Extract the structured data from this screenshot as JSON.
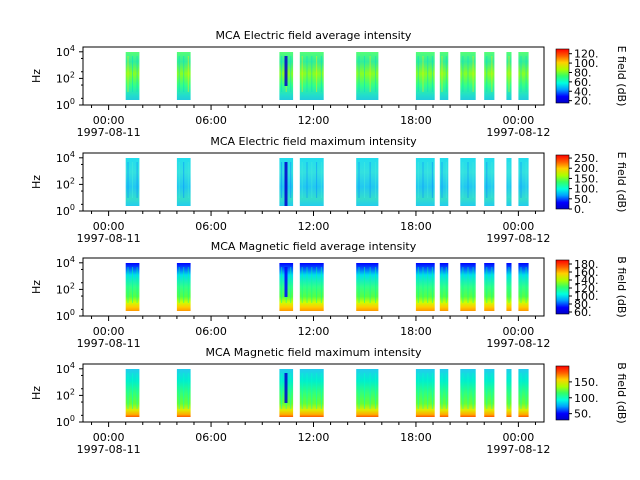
{
  "chart_data": [
    {
      "type": "heatmap",
      "title": "MCA  Electric field average intensity",
      "ylabel": "Hz",
      "y_scale": "log",
      "y_ticks": [
        {
          "base": "10",
          "exp": "0"
        },
        {
          "base": "10",
          "exp": "2"
        },
        {
          "base": "10",
          "exp": "4"
        }
      ],
      "x_ticks": [
        {
          "time": "00:00",
          "date": "1997-08-11"
        },
        {
          "time": "06:00",
          "date": ""
        },
        {
          "time": "12:00",
          "date": ""
        },
        {
          "time": "18:00",
          "date": ""
        },
        {
          "time": "00:00",
          "date": "1997-08-12"
        }
      ],
      "xlim": [
        "1997-08-10T22:30",
        "1997-08-12T00:30"
      ],
      "colorbar": {
        "label": "E field (dB)",
        "ticks": [
          "120.",
          "100.",
          "80.",
          "60.",
          "40.",
          "20."
        ],
        "tick_values": [
          120,
          100,
          80,
          60,
          40,
          20
        ],
        "range": [
          15,
          130
        ]
      },
      "style": "avg_e",
      "data_segments_hours": [
        [
          1.0,
          1.8
        ],
        [
          4.0,
          4.8
        ],
        [
          10.0,
          10.8
        ],
        [
          11.2,
          12.6
        ],
        [
          14.5,
          15.8
        ],
        [
          18.0,
          19.1
        ],
        [
          19.4,
          19.9
        ],
        [
          20.6,
          21.5
        ],
        [
          22.0,
          22.6
        ],
        [
          23.3,
          23.6
        ],
        [
          24.0,
          24.6
        ]
      ]
    },
    {
      "type": "heatmap",
      "title": "MCA  Electric field maximum intensity",
      "ylabel": "Hz",
      "y_scale": "log",
      "y_ticks": [
        {
          "base": "10",
          "exp": "0"
        },
        {
          "base": "10",
          "exp": "2"
        },
        {
          "base": "10",
          "exp": "4"
        }
      ],
      "x_ticks": [
        {
          "time": "00:00",
          "date": "1997-08-11"
        },
        {
          "time": "06:00",
          "date": ""
        },
        {
          "time": "12:00",
          "date": ""
        },
        {
          "time": "18:00",
          "date": ""
        },
        {
          "time": "00:00",
          "date": "1997-08-12"
        }
      ],
      "xlim": [
        "1997-08-10T22:30",
        "1997-08-12T00:30"
      ],
      "colorbar": {
        "label": "E field (dB)",
        "ticks": [
          "250.",
          "200.",
          "150.",
          "100.",
          "50.",
          "0."
        ],
        "tick_values": [
          250,
          200,
          150,
          100,
          50,
          0
        ],
        "range": [
          0,
          265
        ]
      },
      "style": "max_e",
      "data_segments_hours": [
        [
          1.0,
          1.8
        ],
        [
          4.0,
          4.8
        ],
        [
          10.0,
          10.8
        ],
        [
          11.2,
          12.6
        ],
        [
          14.5,
          15.8
        ],
        [
          18.0,
          19.1
        ],
        [
          19.4,
          19.9
        ],
        [
          20.6,
          21.5
        ],
        [
          22.0,
          22.6
        ],
        [
          23.3,
          23.6
        ],
        [
          24.0,
          24.6
        ]
      ]
    },
    {
      "type": "heatmap",
      "title": "MCA  Magnetic field average intensity",
      "ylabel": "Hz",
      "y_scale": "log",
      "y_ticks": [
        {
          "base": "10",
          "exp": "0"
        },
        {
          "base": "10",
          "exp": "2"
        },
        {
          "base": "10",
          "exp": "4"
        }
      ],
      "x_ticks": [
        {
          "time": "00:00",
          "date": "1997-08-11"
        },
        {
          "time": "06:00",
          "date": ""
        },
        {
          "time": "12:00",
          "date": ""
        },
        {
          "time": "18:00",
          "date": ""
        },
        {
          "time": "00:00",
          "date": "1997-08-12"
        }
      ],
      "xlim": [
        "1997-08-10T22:30",
        "1997-08-12T00:30"
      ],
      "colorbar": {
        "label": "B field (dB)",
        "ticks": [
          "180.",
          "160.",
          "140.",
          "120.",
          "100.",
          "80.",
          "60."
        ],
        "tick_values": [
          180,
          160,
          140,
          120,
          100,
          80,
          60
        ],
        "range": [
          55,
          190
        ]
      },
      "style": "avg_b",
      "data_segments_hours": [
        [
          1.0,
          1.8
        ],
        [
          4.0,
          4.8
        ],
        [
          10.0,
          10.8
        ],
        [
          11.2,
          12.6
        ],
        [
          14.5,
          15.8
        ],
        [
          18.0,
          19.1
        ],
        [
          19.4,
          19.9
        ],
        [
          20.6,
          21.5
        ],
        [
          22.0,
          22.6
        ],
        [
          23.3,
          23.6
        ],
        [
          24.0,
          24.6
        ]
      ]
    },
    {
      "type": "heatmap",
      "title": "MCA  Magnetic field maximum intensity",
      "ylabel": "Hz",
      "y_scale": "log",
      "y_ticks": [
        {
          "base": "10",
          "exp": "0"
        },
        {
          "base": "10",
          "exp": "2"
        },
        {
          "base": "10",
          "exp": "4"
        }
      ],
      "x_ticks": [
        {
          "time": "00:00",
          "date": "1997-08-11"
        },
        {
          "time": "06:00",
          "date": ""
        },
        {
          "time": "12:00",
          "date": ""
        },
        {
          "time": "18:00",
          "date": ""
        },
        {
          "time": "00:00",
          "date": "1997-08-12"
        }
      ],
      "xlim": [
        "1997-08-10T22:30",
        "1997-08-12T00:30"
      ],
      "colorbar": {
        "label": "B field (dB)",
        "ticks": [
          "150.",
          "100.",
          "50."
        ],
        "tick_values": [
          150,
          100,
          50
        ],
        "range": [
          30,
          200
        ]
      },
      "style": "max_b",
      "data_segments_hours": [
        [
          1.0,
          1.8
        ],
        [
          4.0,
          4.8
        ],
        [
          10.0,
          10.8
        ],
        [
          11.2,
          12.6
        ],
        [
          14.5,
          15.8
        ],
        [
          18.0,
          19.1
        ],
        [
          19.4,
          19.9
        ],
        [
          20.6,
          21.5
        ],
        [
          22.0,
          22.6
        ],
        [
          23.3,
          23.6
        ],
        [
          24.0,
          24.6
        ]
      ]
    }
  ]
}
